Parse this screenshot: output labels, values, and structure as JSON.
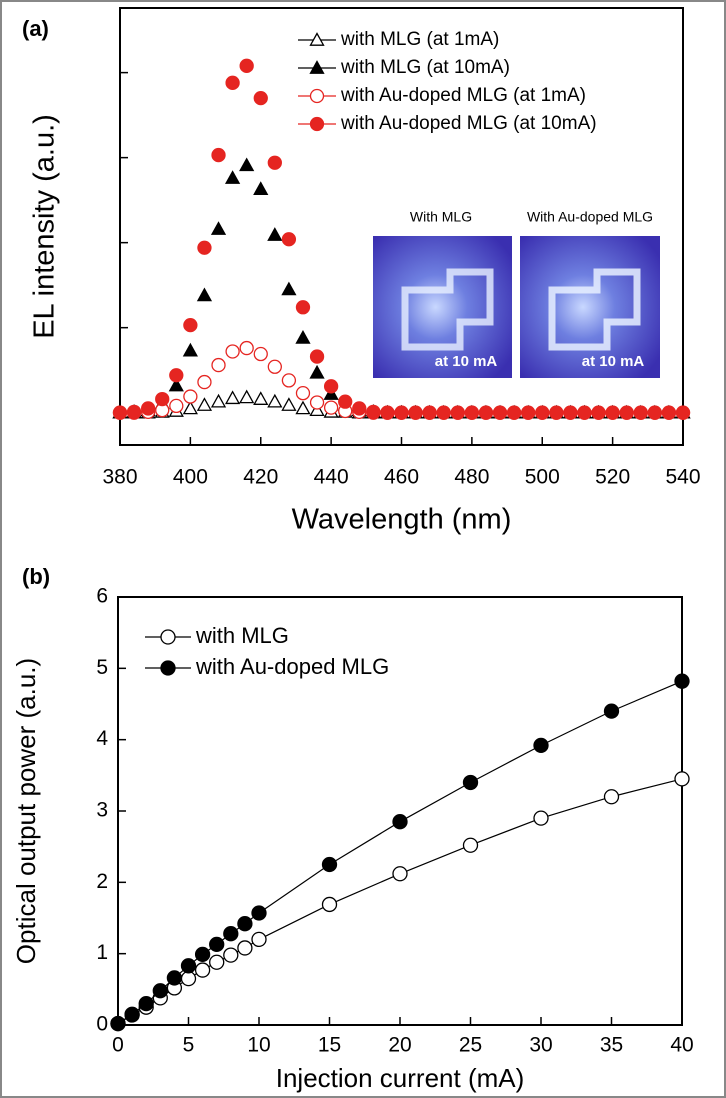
{
  "chart_data": [
    {
      "type": "scatter",
      "panel_label": "(a)",
      "x_label": "Wavelength (nm)",
      "y_label": "EL intensity (a.u.)",
      "x": [
        380,
        384,
        388,
        392,
        396,
        400,
        404,
        408,
        412,
        416,
        420,
        424,
        428,
        432,
        436,
        440,
        444,
        448,
        452,
        456,
        460,
        464,
        468,
        472,
        476,
        480,
        484,
        488,
        492,
        496,
        500,
        504,
        508,
        512,
        516,
        520,
        524,
        528,
        532,
        536,
        540
      ],
      "xlim": [
        380,
        540
      ],
      "xticks": [
        380,
        400,
        420,
        440,
        460,
        480,
        500,
        520,
        540
      ],
      "ylim": [
        -0.38,
        4.76
      ],
      "yticks": [
        0,
        1,
        2,
        3,
        4
      ],
      "series": [
        {
          "name": "with MLG (at 1mA)",
          "color": "#000000",
          "marker": "triangle",
          "filled": false,
          "values": [
            0,
            0,
            0,
            0.01,
            0.02,
            0.05,
            0.09,
            0.13,
            0.17,
            0.18,
            0.16,
            0.13,
            0.09,
            0.05,
            0.03,
            0.01,
            0.01,
            0,
            0,
            0,
            0,
            0,
            0,
            0,
            0,
            0,
            0,
            0,
            0,
            0,
            0,
            0,
            0,
            0,
            0,
            0,
            0,
            0,
            0,
            0,
            0
          ]
        },
        {
          "name": "with MLG (at 10mA)",
          "color": "#000000",
          "marker": "triangle",
          "filled": true,
          "values": [
            0,
            0.01,
            0.03,
            0.11,
            0.32,
            0.73,
            1.38,
            2.16,
            2.76,
            2.91,
            2.63,
            2.09,
            1.45,
            0.88,
            0.47,
            0.22,
            0.09,
            0.03,
            0.01,
            0,
            0,
            0,
            0,
            0,
            0,
            0,
            0,
            0,
            0,
            0,
            0,
            0,
            0,
            0,
            0,
            0,
            0,
            0,
            0,
            0,
            0
          ]
        },
        {
          "name": "with Au-doped MLG (at 1mA)",
          "color": "#e52521",
          "marker": "circle",
          "filled": false,
          "values": [
            0,
            0,
            0.01,
            0.03,
            0.08,
            0.19,
            0.36,
            0.56,
            0.72,
            0.76,
            0.69,
            0.54,
            0.38,
            0.23,
            0.12,
            0.06,
            0.02,
            0.01,
            0,
            0,
            0,
            0,
            0,
            0,
            0,
            0,
            0,
            0,
            0,
            0,
            0,
            0,
            0,
            0,
            0,
            0,
            0,
            0,
            0,
            0,
            0
          ]
        },
        {
          "name": "with Au-doped MLG (at 10mA)",
          "color": "#e52521",
          "marker": "circle",
          "filled": true,
          "values": [
            0,
            0.01,
            0.05,
            0.16,
            0.44,
            1.03,
            1.94,
            3.03,
            3.88,
            4.08,
            3.7,
            2.94,
            2.04,
            1.24,
            0.66,
            0.31,
            0.13,
            0.05,
            0.01,
            0,
            0,
            0,
            0,
            0,
            0,
            0,
            0,
            0,
            0,
            0,
            0,
            0,
            0,
            0,
            0,
            0,
            0,
            0,
            0,
            0,
            0
          ]
        }
      ],
      "inset": {
        "titles": [
          "With MLG",
          "With Au-doped MLG"
        ],
        "captions": [
          "at 10 mA",
          "at 10 mA"
        ]
      }
    },
    {
      "type": "line",
      "panel_label": "(b)",
      "x_label": "Injection current (mA)",
      "y_label": "Optical output power (a.u.)",
      "x": [
        0,
        1,
        2,
        3,
        4,
        5,
        6,
        7,
        8,
        9,
        10,
        15,
        20,
        25,
        30,
        35,
        40
      ],
      "xlim": [
        0,
        40
      ],
      "xticks": [
        0,
        5,
        10,
        15,
        20,
        25,
        30,
        35,
        40
      ],
      "ylim": [
        0,
        6
      ],
      "yticks": [
        0,
        1,
        2,
        3,
        4,
        5,
        6
      ],
      "series": [
        {
          "name": "with MLG",
          "color": "#000000",
          "marker": "circle",
          "filled": false,
          "values": [
            0.02,
            0.14,
            0.25,
            0.38,
            0.52,
            0.65,
            0.77,
            0.88,
            0.98,
            1.08,
            1.2,
            1.69,
            2.12,
            2.52,
            2.9,
            3.2,
            3.45
          ]
        },
        {
          "name": "with Au-doped MLG",
          "color": "#000000",
          "marker": "circle",
          "filled": true,
          "values": [
            0.02,
            0.15,
            0.3,
            0.48,
            0.66,
            0.83,
            0.99,
            1.13,
            1.28,
            1.42,
            1.57,
            2.25,
            2.85,
            3.4,
            3.92,
            4.4,
            4.82
          ]
        }
      ]
    }
  ]
}
